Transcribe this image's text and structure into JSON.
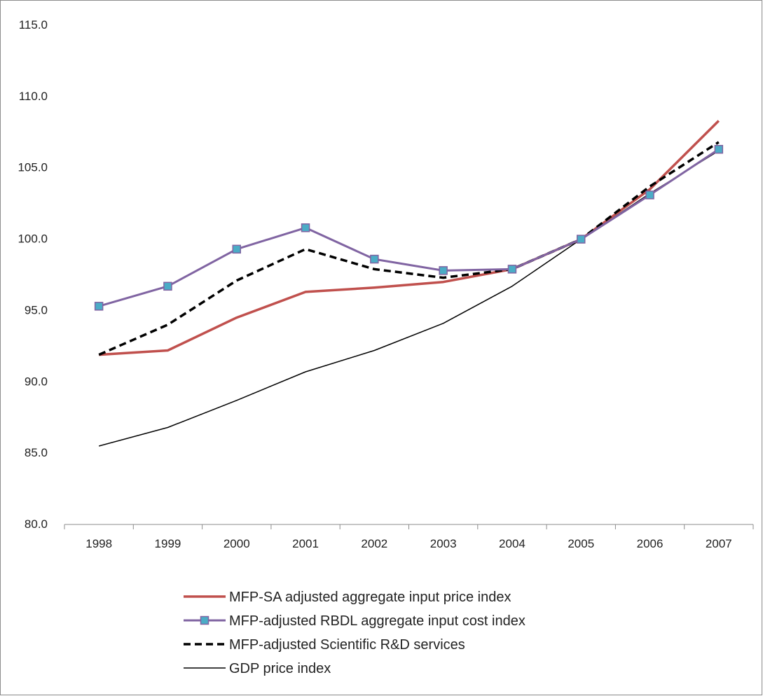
{
  "chart_data": {
    "type": "line",
    "categories": [
      "1998",
      "1999",
      "2000",
      "2001",
      "2002",
      "2003",
      "2004",
      "2005",
      "2006",
      "2007"
    ],
    "ylim": [
      80.0,
      115.0
    ],
    "yticks": [
      80.0,
      85.0,
      90.0,
      95.0,
      100.0,
      105.0,
      110.0,
      115.0
    ],
    "ytick_labels": [
      "80.0",
      "85.0",
      "90.0",
      "95.0",
      "100.0",
      "105.0",
      "110.0",
      "115.0"
    ],
    "grid": false,
    "legend_position": "bottom",
    "series": [
      {
        "name": "MFP-SA adjusted aggregate input price index",
        "color": "#c0504d",
        "style": "solid-thick",
        "values": [
          91.9,
          92.2,
          94.5,
          96.3,
          96.6,
          97.0,
          97.9,
          100.0,
          103.5,
          108.3
        ]
      },
      {
        "name": "MFP-adjusted RBDL aggregate input cost index",
        "color": "#8064a2",
        "marker_color": "#4bacc6",
        "style": "solid-markers",
        "values": [
          95.3,
          96.7,
          99.3,
          100.8,
          98.6,
          97.8,
          97.9,
          100.0,
          103.1,
          106.3
        ]
      },
      {
        "name": "MFP-adjusted Scientific R&D services",
        "color": "#000000",
        "style": "dashed",
        "values": [
          91.9,
          94.0,
          97.1,
          99.3,
          97.9,
          97.3,
          97.9,
          100.0,
          103.7,
          106.8
        ]
      },
      {
        "name": "GDP price index",
        "color": "#000000",
        "style": "solid-thin",
        "values": [
          85.5,
          86.8,
          88.7,
          90.7,
          92.2,
          94.1,
          96.7,
          100.0,
          103.2,
          106.2
        ]
      }
    ]
  }
}
